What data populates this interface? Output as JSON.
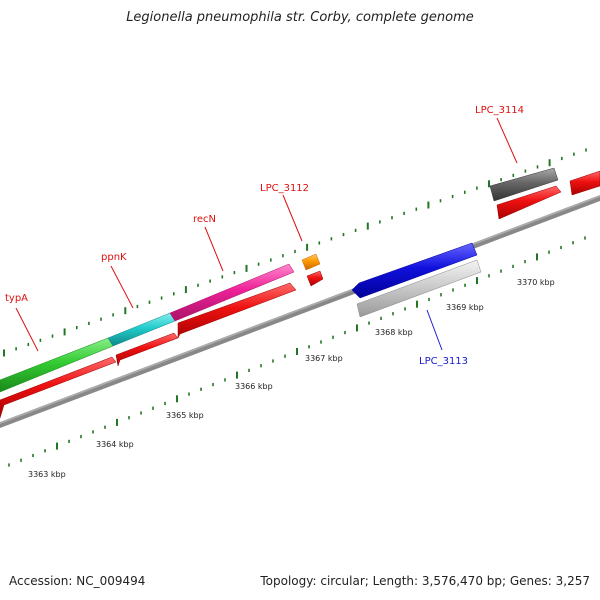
{
  "title": "Legionella pneumophila str. Corby, complete genome",
  "footer": {
    "accession": "Accession: NC_009494",
    "topology": "Topology: circular; Length: 3,576,470 bp; Genes: 3,257"
  },
  "kbp_labels": [
    {
      "text": "3363 kbp",
      "kbp": 3363
    },
    {
      "text": "3364 kbp",
      "kbp": 3364
    },
    {
      "text": "3365 kbp",
      "kbp": 3365
    },
    {
      "text": "3366 kbp",
      "kbp": 3366
    },
    {
      "text": "3367 kbp",
      "kbp": 3367
    },
    {
      "text": "3368 kbp",
      "kbp": 3368
    },
    {
      "text": "3369 kbp",
      "kbp": 3369
    },
    {
      "text": "3370 kbp",
      "kbp": 3370
    }
  ],
  "gene_labels": [
    {
      "name": "typA",
      "color": "#dd1111"
    },
    {
      "name": "ppnK",
      "color": "#dd1111"
    },
    {
      "name": "recN",
      "color": "#dd1111"
    },
    {
      "name": "LPC_3112",
      "color": "#dd1111"
    },
    {
      "name": "LPC_3114",
      "color": "#dd1111"
    },
    {
      "name": "LPC_3113",
      "color": "#1a1acc"
    }
  ],
  "colors": {
    "forward_feature": "#ee1111",
    "typA": "#33cc33",
    "ppnK": "#22cccc",
    "recN": "#ee2299",
    "LPC_3112": "#ff9900",
    "LPC_3114": "#666666",
    "LPC_3113_top": "#1111dd",
    "LPC_3113_bottom": "#cccccc",
    "backbone": "#888888",
    "ticks": "#227722"
  }
}
